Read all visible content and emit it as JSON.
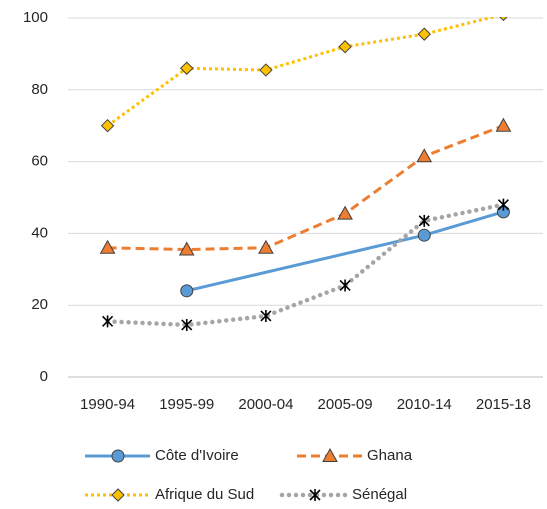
{
  "chart_data": {
    "type": "line",
    "categories": [
      "1990-94",
      "1995-99",
      "2000-04",
      "2005-09",
      "2010-14",
      "2015-18"
    ],
    "series": [
      {
        "name": "Côte d'Ivoire",
        "color": "#5b9bd5",
        "marker": "circle",
        "dash": "solid",
        "values": [
          null,
          24,
          null,
          null,
          39.5,
          46
        ]
      },
      {
        "name": "Ghana",
        "color": "#ed7d31",
        "marker": "triangle",
        "dash": "dashed",
        "values": [
          36,
          35.5,
          36,
          45.5,
          61.5,
          70
        ]
      },
      {
        "name": "Afrique du Sud",
        "color": "#ffc000",
        "marker": "diamond",
        "dash": "dotted",
        "values": [
          70,
          86,
          85.5,
          92,
          95.5,
          101
        ]
      },
      {
        "name": "Sénégal",
        "color": "#a5a5a5",
        "marker": "star",
        "dash": "round-dotted",
        "values": [
          15.5,
          14.5,
          17,
          25.5,
          43.5,
          48
        ]
      }
    ],
    "ylim": [
      0,
      100
    ],
    "yticks": [
      0,
      20,
      40,
      60,
      80,
      100
    ],
    "grid": true,
    "legend": "bottom"
  }
}
